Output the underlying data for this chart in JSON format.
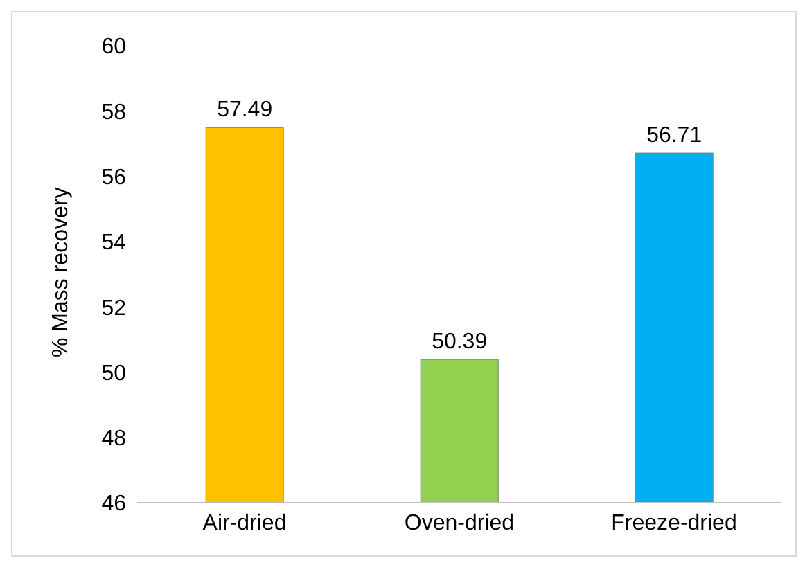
{
  "chart_data": {
    "type": "bar",
    "ylabel": "% Mass recovery",
    "categories": [
      "Air-dried",
      "Oven-dried",
      "Freeze-dried"
    ],
    "values": [
      57.49,
      50.39,
      56.71
    ],
    "colors": [
      "#ffc000",
      "#92d050",
      "#00b0f0"
    ],
    "ylim": [
      46,
      60
    ],
    "yticks": [
      46,
      48,
      50,
      52,
      54,
      56,
      58,
      60
    ],
    "data_labels": true
  }
}
